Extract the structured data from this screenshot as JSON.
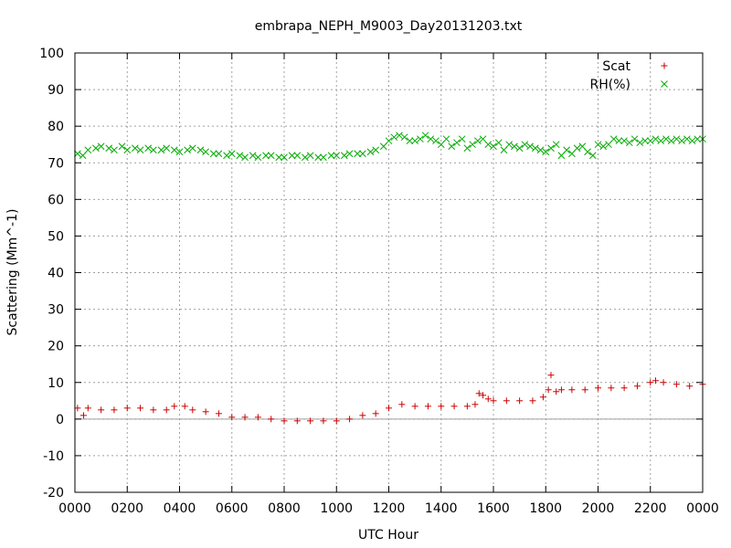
{
  "chart_data": {
    "type": "scatter",
    "title": "embrapa_NEPH_M9003_Day20131203.txt",
    "xlabel": "UTC Hour",
    "ylabel": "Scattering (Mm^-1)",
    "xlim": [
      0,
      24
    ],
    "ylim": [
      -20,
      100
    ],
    "x_ticks": [
      0,
      2,
      4,
      6,
      8,
      10,
      12,
      14,
      16,
      18,
      20,
      22,
      24
    ],
    "x_tick_labels": [
      "0000",
      "0200",
      "0400",
      "0600",
      "0800",
      "1000",
      "1200",
      "1400",
      "1600",
      "1800",
      "2000",
      "2200",
      "0000"
    ],
    "y_ticks": [
      -20,
      -10,
      0,
      10,
      20,
      30,
      40,
      50,
      60,
      70,
      80,
      90,
      100
    ],
    "y_tick_labels": [
      "-20",
      "-10",
      "0",
      "10",
      "20",
      "30",
      "40",
      "50",
      "60",
      "70",
      "80",
      "90",
      "100"
    ],
    "grid": true,
    "zero_line": true,
    "legend_position": "top-right",
    "series": [
      {
        "name": "Scat",
        "marker": "plus",
        "color": "#cc0000",
        "x": [
          0.1,
          0.33,
          0.5,
          1.0,
          1.5,
          2.0,
          2.5,
          3.0,
          3.5,
          3.8,
          4.2,
          4.5,
          5.0,
          5.5,
          6.0,
          6.5,
          7.0,
          7.5,
          8.0,
          8.5,
          9.0,
          9.5,
          10.0,
          10.5,
          11.0,
          11.5,
          12.0,
          12.5,
          13.0,
          13.5,
          14.0,
          14.5,
          15.0,
          15.3,
          15.45,
          15.6,
          15.8,
          16.0,
          16.5,
          17.0,
          17.5,
          17.9,
          18.1,
          18.2,
          18.4,
          18.6,
          19.0,
          19.5,
          20.0,
          20.5,
          21.0,
          21.5,
          22.0,
          22.2,
          22.5,
          23.0,
          23.5,
          24.0
        ],
        "y": [
          3,
          1,
          3,
          2.5,
          2.5,
          3,
          3,
          2.5,
          2.5,
          3.5,
          3.5,
          2.5,
          2,
          1.5,
          0.5,
          0.5,
          0.5,
          0,
          -0.5,
          -0.5,
          -0.5,
          -0.5,
          -0.5,
          0,
          1,
          1.5,
          3,
          4,
          3.5,
          3.5,
          3.5,
          3.5,
          3.5,
          4,
          7,
          6.5,
          5.5,
          5,
          5,
          5,
          5,
          6,
          8,
          12,
          7.5,
          8,
          8,
          8,
          8.5,
          8.5,
          8.5,
          9,
          10,
          10.5,
          10,
          9.5,
          9,
          9.5
        ]
      },
      {
        "name": "RH(%)",
        "marker": "cross",
        "color": "#00aa00",
        "x": [
          0.1,
          0.3,
          0.5,
          0.8,
          1.0,
          1.3,
          1.5,
          1.8,
          2.0,
          2.3,
          2.5,
          2.8,
          3.0,
          3.3,
          3.5,
          3.8,
          4.0,
          4.3,
          4.5,
          4.8,
          5.0,
          5.3,
          5.5,
          5.8,
          6.0,
          6.3,
          6.5,
          6.8,
          7.0,
          7.3,
          7.5,
          7.8,
          8.0,
          8.3,
          8.5,
          8.8,
          9.0,
          9.3,
          9.5,
          9.8,
          10.0,
          10.3,
          10.5,
          10.8,
          11.0,
          11.3,
          11.5,
          11.8,
          12.0,
          12.2,
          12.4,
          12.6,
          12.8,
          13.0,
          13.2,
          13.4,
          13.6,
          13.8,
          14.0,
          14.2,
          14.4,
          14.6,
          14.8,
          15.0,
          15.2,
          15.4,
          15.6,
          15.8,
          16.0,
          16.2,
          16.4,
          16.6,
          16.8,
          17.0,
          17.2,
          17.4,
          17.6,
          17.8,
          18.0,
          18.2,
          18.4,
          18.6,
          18.8,
          19.0,
          19.2,
          19.4,
          19.6,
          19.8,
          20.0,
          20.2,
          20.4,
          20.6,
          20.8,
          21.0,
          21.2,
          21.4,
          21.6,
          21.8,
          22.0,
          22.2,
          22.4,
          22.6,
          22.8,
          23.0,
          23.2,
          23.4,
          23.6,
          23.8,
          24.0
        ],
        "y": [
          72.5,
          72,
          73.5,
          74,
          74.5,
          74,
          73.5,
          74.5,
          73.5,
          74,
          73.5,
          74,
          73.5,
          73.5,
          74,
          73.5,
          73,
          73.5,
          74,
          73.5,
          73,
          72.5,
          72.5,
          72,
          72.5,
          72,
          71.5,
          72,
          71.5,
          72,
          72,
          71.5,
          71.5,
          72,
          72,
          71.5,
          72,
          71.5,
          71.5,
          72,
          72,
          72,
          72.5,
          72.5,
          72.5,
          73,
          73.5,
          74.5,
          76,
          77,
          77.5,
          77,
          76,
          76,
          76.5,
          77.5,
          76.5,
          76,
          75,
          76.5,
          74.5,
          75.5,
          76.5,
          74,
          75,
          76,
          76.5,
          75,
          74.5,
          75.5,
          73.5,
          75,
          74.5,
          74,
          75,
          74.5,
          74,
          73.5,
          73,
          74,
          75,
          72,
          73.5,
          72.5,
          74,
          74.5,
          73,
          72,
          75,
          74.5,
          75,
          76.5,
          76,
          76,
          75.5,
          76.5,
          75.5,
          76,
          76,
          76.5,
          76,
          76.5,
          76,
          76.5,
          76,
          76.5,
          76,
          76.5,
          76.5
        ]
      }
    ]
  }
}
